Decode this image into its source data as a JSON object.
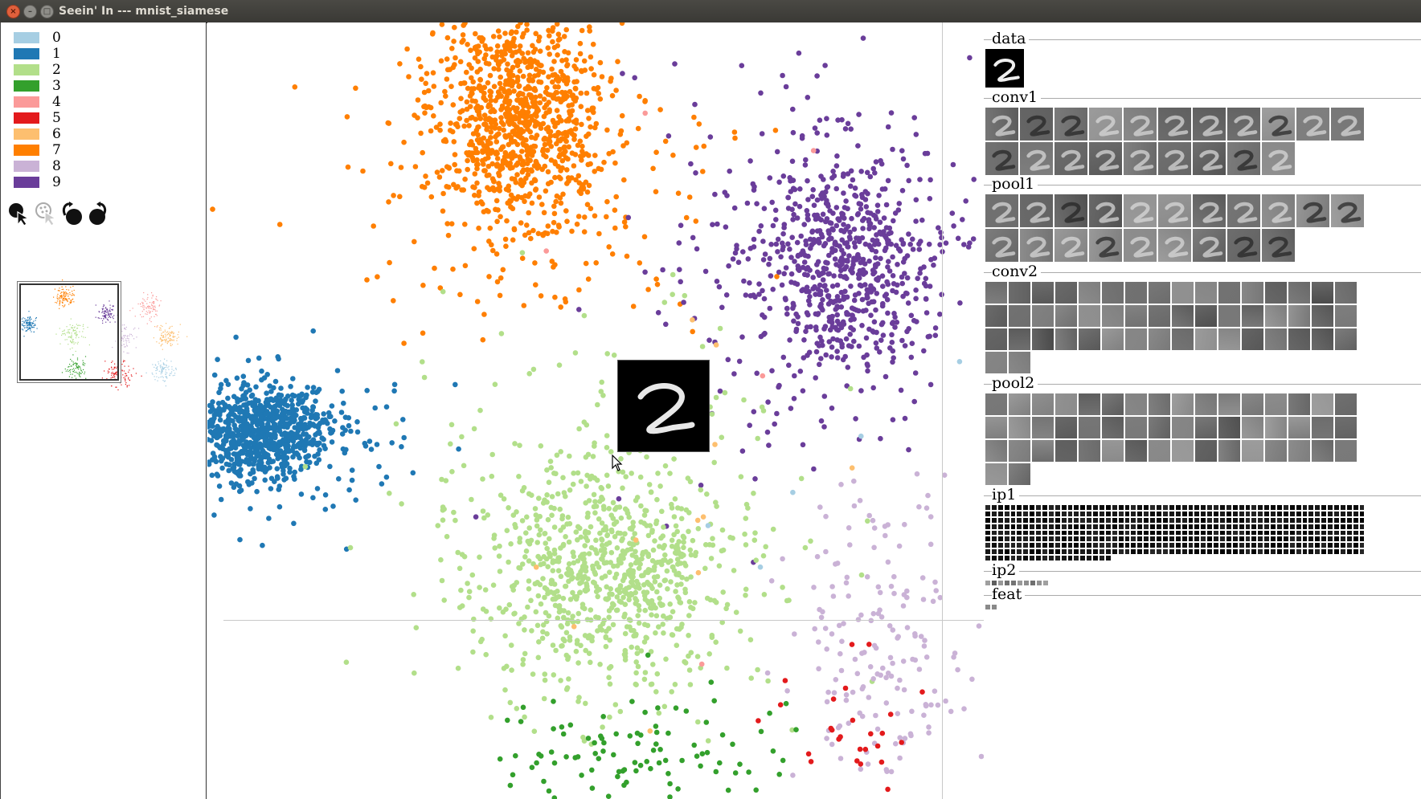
{
  "window": {
    "title": "Seein' In --- mnist_siamese",
    "buttons": [
      "close",
      "minimize",
      "maximize"
    ]
  },
  "legend": [
    {
      "label": "0",
      "color": "#a6cee3"
    },
    {
      "label": "1",
      "color": "#1f78b4"
    },
    {
      "label": "2",
      "color": "#b2df8a"
    },
    {
      "label": "3",
      "color": "#33a02c"
    },
    {
      "label": "4",
      "color": "#fb9a99"
    },
    {
      "label": "5",
      "color": "#e31a1c"
    },
    {
      "label": "6",
      "color": "#fdbf6f"
    },
    {
      "label": "7",
      "color": "#ff7f00"
    },
    {
      "label": "8",
      "color": "#cab2d6"
    },
    {
      "label": "9",
      "color": "#6a3d9a"
    }
  ],
  "tools": [
    {
      "name": "select-pointer-icon"
    },
    {
      "name": "select-pointer-disabled-icon"
    },
    {
      "name": "lasso-add-icon"
    },
    {
      "name": "lasso-remove-icon"
    }
  ],
  "layers": [
    {
      "name": "data",
      "tiles": 1
    },
    {
      "name": "conv1",
      "tiles": 20
    },
    {
      "name": "pool1",
      "tiles": 20
    },
    {
      "name": "conv2",
      "tiles": 50
    },
    {
      "name": "pool2",
      "tiles": 50
    },
    {
      "name": "ip1",
      "tiles": 500
    },
    {
      "name": "ip2",
      "tiles": 10
    },
    {
      "name": "feat",
      "tiles": 2
    }
  ],
  "hover_sample": {
    "digit": "2"
  }
}
